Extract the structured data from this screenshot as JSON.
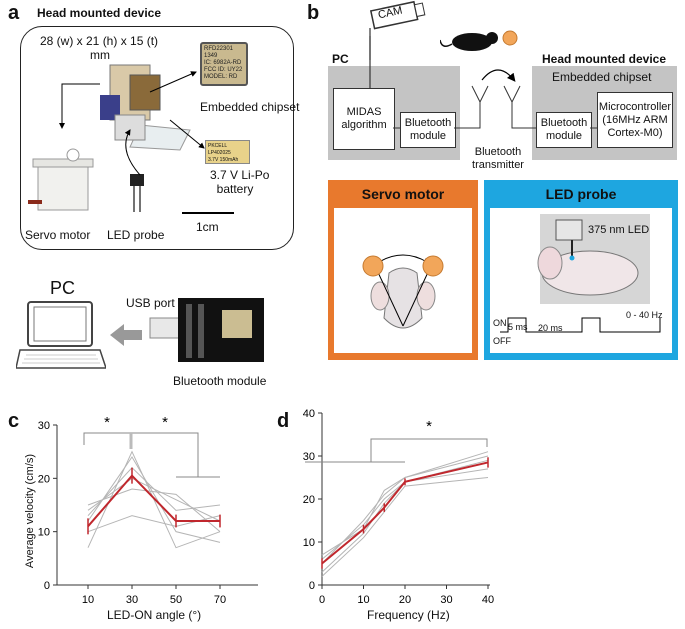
{
  "panel_labels": {
    "a": "a",
    "b": "b",
    "c": "c",
    "d": "d"
  },
  "panel_a": {
    "title": "Head mounted device",
    "dimensions": "28 (w) x 21 (h) x 15 (t)",
    "dimensions_unit": "mm",
    "chip_label": "Embedded chipset",
    "chip_text": [
      "RFD22301",
      "1349",
      "IC: 6982A-RD",
      "FCC ID: UY22",
      "MODEL: RD"
    ],
    "battery_label": "3.7 V Li-Po",
    "battery_label2": "battery",
    "battery_text": [
      "PKCELL LP402025",
      "3.7V 150mAh"
    ],
    "servo_label": "Servo motor",
    "led_label": "LED probe",
    "scale_label": "1cm",
    "pc_label": "PC",
    "usb_label": "USB port",
    "bt_label": "Bluetooth module"
  },
  "panel_b": {
    "cam_label": "CAM",
    "pc_label": "PC",
    "head_device_label": "Head mounted device",
    "chipset_label": "Embedded chipset",
    "midas_label": "MIDAS algorithm",
    "bt_module_left": "Bluetooth module",
    "bt_module_right": "Bluetooth module",
    "bt_transmitter": "Bluetooth transmitter",
    "mcu_label": "Microcontroller (16MHz ARM Cortex-M0)",
    "servo_title": "Servo motor",
    "led_title": "LED probe",
    "led_nm": "375 nm LED",
    "on_label": "ON",
    "off_label": "OFF",
    "t5": "5 ms",
    "t20": "20 ms",
    "freq": "0 - 40 Hz",
    "colors": {
      "gray": "#c4c4c4",
      "servo": "#e8792d",
      "led": "#1ea6e0",
      "led_text": "#1ea6e0"
    }
  },
  "chart_data": [
    {
      "type": "line",
      "panel": "c",
      "xlabel": "LED-ON angle (°)",
      "ylabel": "Average velocity (cm/s)",
      "x": [
        10,
        30,
        50,
        70
      ],
      "xticks": [
        "10",
        "30",
        "50",
        "70"
      ],
      "yticks": [
        "0",
        "10",
        "20",
        "30"
      ],
      "ylim": [
        0,
        30
      ],
      "mean": [
        11,
        20.5,
        12,
        12
      ],
      "err": [
        1.5,
        1.5,
        1.2,
        1.2
      ],
      "individual": [
        [
          7,
          25,
          7,
          10
        ],
        [
          12,
          24,
          10,
          8
        ],
        [
          13,
          22,
          14,
          15
        ],
        [
          14,
          20,
          16,
          12
        ],
        [
          15,
          18,
          17,
          10
        ],
        [
          10,
          13,
          11,
          13
        ]
      ],
      "significance": [
        "*",
        "*"
      ],
      "colors": {
        "mean": "#c0272d",
        "individual": "#b5b5b5"
      }
    },
    {
      "type": "line",
      "panel": "d",
      "xlabel": "Frequency (Hz)",
      "ylabel": "",
      "x": [
        0,
        10,
        15,
        20,
        40
      ],
      "xticks": [
        "0",
        "10",
        "20",
        "30",
        "40"
      ],
      "yticks": [
        "0",
        "10",
        "20",
        "30",
        "40"
      ],
      "ylim": [
        0,
        40
      ],
      "xlim": [
        0,
        40
      ],
      "mean": [
        5,
        13,
        18,
        24,
        28.5
      ],
      "err": [
        1.2,
        1,
        1,
        0.8,
        1.2
      ],
      "individual": [
        [
          3,
          12,
          19,
          24,
          27
        ],
        [
          6,
          14,
          20,
          24,
          29
        ],
        [
          7,
          13,
          22,
          25,
          30
        ],
        [
          2,
          11,
          17,
          23,
          25
        ],
        [
          5,
          15,
          21,
          25,
          31
        ]
      ],
      "significance": [
        "*"
      ],
      "colors": {
        "mean": "#c0272d",
        "individual": "#b5b5b5"
      }
    }
  ]
}
